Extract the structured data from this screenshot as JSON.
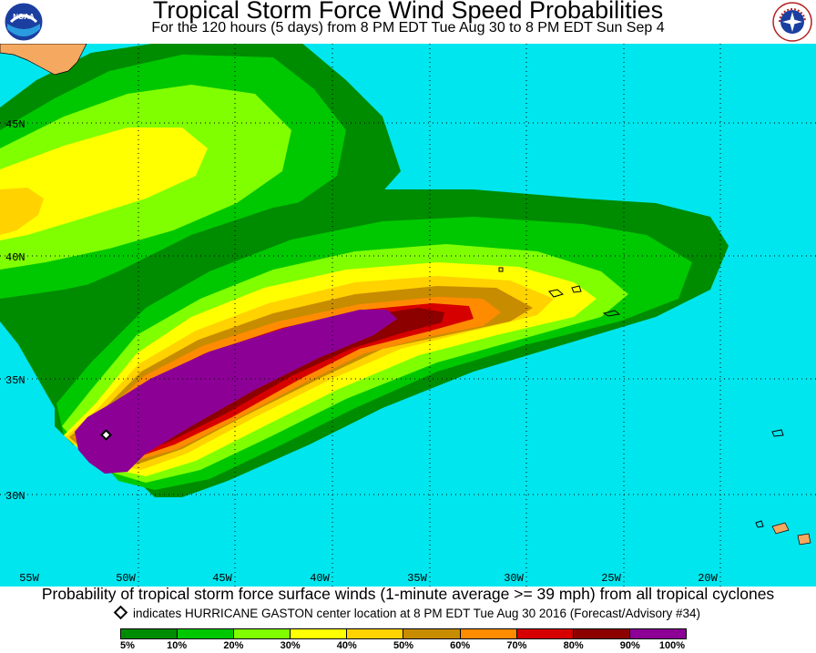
{
  "header": {
    "title": "Tropical Storm Force Wind Speed Probabilities",
    "subtitle": "For the 120 hours (5 days) from 8 PM EDT Tue Aug 30 to 8 PM EDT Sun Sep 4"
  },
  "logos": {
    "left": "NOAA",
    "right": "NATIONAL WEATHER SERVICE"
  },
  "map": {
    "ocean_color": "#00e6ee",
    "land_color": "#f5a860",
    "storm_name": "HURRICANE GASTON",
    "lat_labels": [
      "45N",
      "40N",
      "35N",
      "30N"
    ],
    "lon_labels": [
      "55W",
      "50W",
      "45W",
      "40W",
      "35W",
      "30W",
      "25W",
      "20W"
    ]
  },
  "footer": {
    "caption": "Probability of tropical storm force surface winds (1-minute average >= 39 mph) from all tropical cyclones",
    "storm_note": "indicates HURRICANE GASTON center location at 8 PM EDT Tue Aug 30 2016 (Forecast/Advisory #34)"
  },
  "legend": {
    "colors": [
      "#008c00",
      "#00c800",
      "#80ff00",
      "#ffff00",
      "#ffd200",
      "#c88c00",
      "#ff8c00",
      "#d70000",
      "#8c0000",
      "#8c0096"
    ],
    "labels": [
      "5%",
      "10%",
      "20%",
      "30%",
      "40%",
      "50%",
      "60%",
      "70%",
      "80%",
      "90%",
      "100%"
    ]
  }
}
